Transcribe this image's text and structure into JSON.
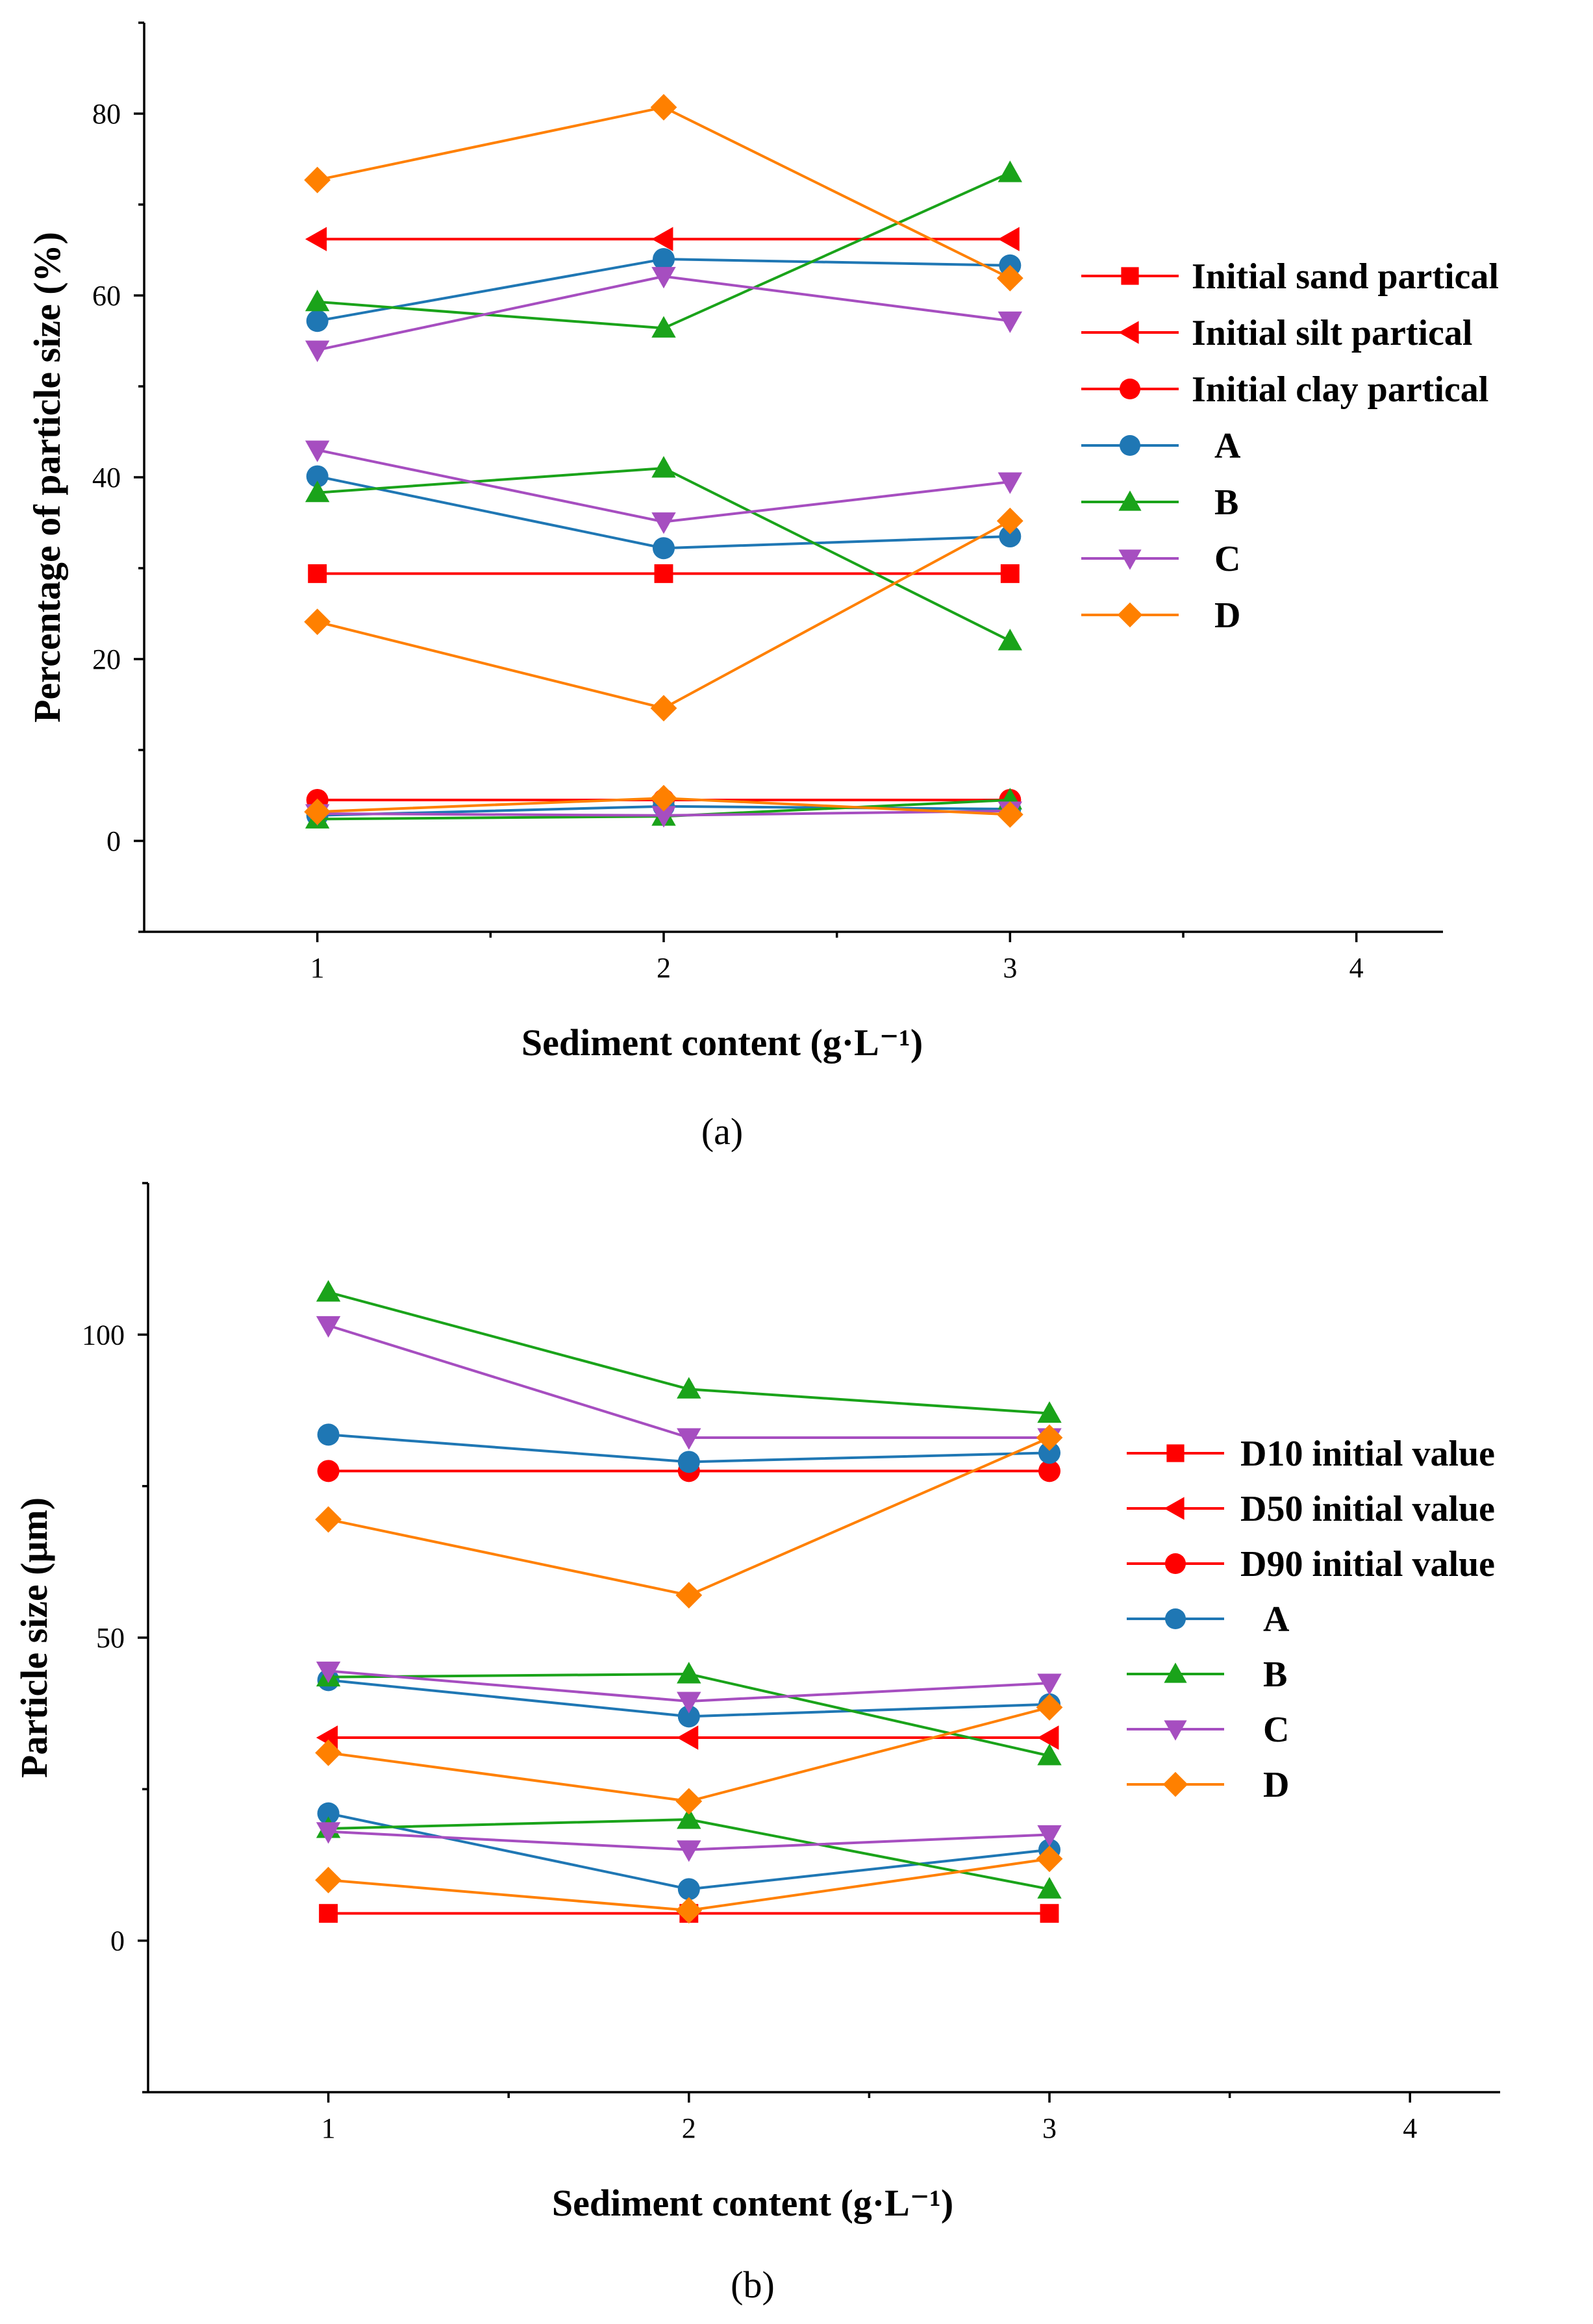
{
  "chart_data": [
    {
      "type": "line",
      "panel_label": "(a)",
      "xlabel": "Sediment content (g·L⁻¹)",
      "ylabel": "Percentage of particle size (%)",
      "xlim": [
        0.5,
        4.25
      ],
      "ylim": [
        -10,
        90
      ],
      "xticks": [
        1,
        2,
        3,
        4
      ],
      "xtick_labels": [
        "1",
        "2",
        "3",
        "4"
      ],
      "yticks": [
        0,
        20,
        40,
        60,
        80
      ],
      "ytick_labels": [
        "0",
        "20",
        "40",
        "60",
        "80"
      ],
      "legend_position": "right",
      "legend": [
        {
          "label": "Initial sand partical",
          "color": "#ff0000",
          "marker": "square"
        },
        {
          "label": "Initial silt partical",
          "color": "#ff0000",
          "marker": "triangle-left"
        },
        {
          "label": "Initial clay partical",
          "color": "#ff0000",
          "marker": "circle"
        },
        {
          "label": "A",
          "color": "#1f77b4",
          "marker": "circle"
        },
        {
          "label": "B",
          "color": "#1aa31a",
          "marker": "triangle-up"
        },
        {
          "label": "C",
          "color": "#a64ec0",
          "marker": "triangle-down"
        },
        {
          "label": "D",
          "color": "#ff8000",
          "marker": "diamond"
        }
      ],
      "x": [
        1,
        2,
        3
      ],
      "series": [
        {
          "name": "Initial sand partical",
          "color": "#ff0000",
          "marker": "square",
          "values": [
            29.4,
            29.4,
            29.4
          ]
        },
        {
          "name": "Initial silt partical",
          "color": "#ff0000",
          "marker": "triangle-left",
          "values": [
            66.2,
            66.2,
            66.2
          ]
        },
        {
          "name": "Initial clay partical",
          "color": "#ff0000",
          "marker": "circle",
          "values": [
            4.5,
            4.5,
            4.5
          ]
        },
        {
          "name": "A (silt)",
          "color": "#1f77b4",
          "marker": "circle",
          "values": [
            57.2,
            64.0,
            63.3
          ]
        },
        {
          "name": "A (sand)",
          "color": "#1f77b4",
          "marker": "circle",
          "values": [
            40.1,
            32.2,
            33.5
          ]
        },
        {
          "name": "A (clay)",
          "color": "#1f77b4",
          "marker": "circle",
          "values": [
            2.8,
            3.8,
            3.5
          ]
        },
        {
          "name": "B (silt)",
          "color": "#1aa31a",
          "marker": "triangle-up",
          "values": [
            59.3,
            56.4,
            73.5
          ]
        },
        {
          "name": "B (sand)",
          "color": "#1aa31a",
          "marker": "triangle-up",
          "values": [
            38.3,
            41.0,
            22.0
          ]
        },
        {
          "name": "B (clay)",
          "color": "#1aa31a",
          "marker": "triangle-up",
          "values": [
            2.4,
            2.7,
            4.5
          ]
        },
        {
          "name": "C (silt)",
          "color": "#a64ec0",
          "marker": "triangle-down",
          "values": [
            54.0,
            62.1,
            57.2
          ]
        },
        {
          "name": "C (sand)",
          "color": "#a64ec0",
          "marker": "triangle-down",
          "values": [
            43.0,
            35.1,
            39.5
          ]
        },
        {
          "name": "C (clay)",
          "color": "#a64ec0",
          "marker": "triangle-down",
          "values": [
            3.0,
            2.8,
            3.3
          ]
        },
        {
          "name": "D (silt)",
          "color": "#ff8000",
          "marker": "diamond",
          "values": [
            72.7,
            80.7,
            61.9
          ]
        },
        {
          "name": "D (sand)",
          "color": "#ff8000",
          "marker": "diamond",
          "values": [
            24.1,
            14.6,
            35.2
          ]
        },
        {
          "name": "D (clay)",
          "color": "#ff8000",
          "marker": "diamond",
          "values": [
            3.2,
            4.7,
            2.9
          ]
        }
      ]
    },
    {
      "type": "line",
      "panel_label": "(b)",
      "xlabel": "Sediment content (g·L⁻¹)",
      "ylabel": "Particle size (μm)",
      "xlim": [
        0.5,
        4.25
      ],
      "ylim": [
        -25,
        125
      ],
      "xticks": [
        1,
        2,
        3,
        4
      ],
      "xtick_labels": [
        "1",
        "2",
        "3",
        "4"
      ],
      "yticks": [
        0,
        50,
        100
      ],
      "ytick_labels": [
        "0",
        "50",
        "100"
      ],
      "legend_position": "right",
      "legend": [
        {
          "label": "D10 initial value",
          "color": "#ff0000",
          "marker": "square"
        },
        {
          "label": "D50 initial value",
          "color": "#ff0000",
          "marker": "triangle-left"
        },
        {
          "label": "D90 initial value",
          "color": "#ff0000",
          "marker": "circle"
        },
        {
          "label": "A",
          "color": "#1f77b4",
          "marker": "circle"
        },
        {
          "label": "B",
          "color": "#1aa31a",
          "marker": "triangle-up"
        },
        {
          "label": "C",
          "color": "#a64ec0",
          "marker": "triangle-down"
        },
        {
          "label": "D",
          "color": "#ff8000",
          "marker": "diamond"
        }
      ],
      "x": [
        1,
        2,
        3
      ],
      "series": [
        {
          "name": "D10 initial value",
          "color": "#ff0000",
          "marker": "square",
          "values": [
            4.5,
            4.5,
            4.5
          ]
        },
        {
          "name": "D50 initial value",
          "color": "#ff0000",
          "marker": "triangle-left",
          "values": [
            33.5,
            33.5,
            33.5
          ]
        },
        {
          "name": "D90 initial value",
          "color": "#ff0000",
          "marker": "circle",
          "values": [
            77.5,
            77.5,
            77.5
          ]
        },
        {
          "name": "A (D90)",
          "color": "#1f77b4",
          "marker": "circle",
          "values": [
            83.5,
            79.0,
            80.5
          ]
        },
        {
          "name": "A (D50)",
          "color": "#1f77b4",
          "marker": "circle",
          "values": [
            43.0,
            37.0,
            39.0
          ]
        },
        {
          "name": "A (D10)",
          "color": "#1f77b4",
          "marker": "circle",
          "values": [
            21.0,
            8.5,
            15.0
          ]
        },
        {
          "name": "B (D90)",
          "color": "#1aa31a",
          "marker": "triangle-up",
          "values": [
            107.0,
            91.0,
            87.0
          ]
        },
        {
          "name": "B (D50)",
          "color": "#1aa31a",
          "marker": "triangle-up",
          "values": [
            43.5,
            44.0,
            30.5
          ]
        },
        {
          "name": "B (D10)",
          "color": "#1aa31a",
          "marker": "triangle-up",
          "values": [
            18.5,
            20.0,
            8.5
          ]
        },
        {
          "name": "C (D90)",
          "color": "#a64ec0",
          "marker": "triangle-down",
          "values": [
            101.5,
            83.0,
            83.0
          ]
        },
        {
          "name": "C (D50)",
          "color": "#a64ec0",
          "marker": "triangle-down",
          "values": [
            44.5,
            39.5,
            42.5
          ]
        },
        {
          "name": "C (D10)",
          "color": "#a64ec0",
          "marker": "triangle-down",
          "values": [
            18.0,
            15.0,
            17.5
          ]
        },
        {
          "name": "D (D90)",
          "color": "#ff8000",
          "marker": "diamond",
          "values": [
            69.5,
            57.0,
            83.0
          ]
        },
        {
          "name": "D (D50)",
          "color": "#ff8000",
          "marker": "diamond",
          "values": [
            31.0,
            23.0,
            38.5
          ]
        },
        {
          "name": "D (D10)",
          "color": "#ff8000",
          "marker": "diamond",
          "values": [
            10.0,
            5.0,
            13.5
          ]
        }
      ]
    }
  ]
}
